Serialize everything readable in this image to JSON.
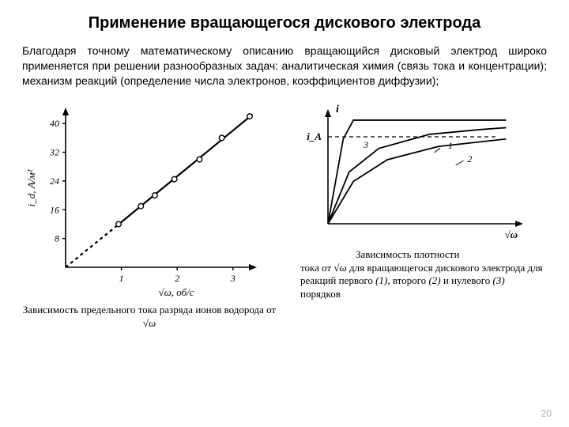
{
  "title": "Применение вращающегося дискового электрода",
  "paragraph": "Благодаря точному математическому описанию вращающийся дисковый электрод широко применяется при решении разнообразных задач: аналитическая химия (связь тока и концентрации); механизм реакций (определение числа электронов, коэффициентов диффузии);",
  "page_number": "20",
  "fig1": {
    "type": "line-scatter",
    "x_ticks": [
      "1",
      "2",
      "3"
    ],
    "y_ticks": [
      "8",
      "16",
      "24",
      "32",
      "40"
    ],
    "xlim": [
      0,
      3.4
    ],
    "ylim": [
      0,
      44
    ],
    "x_label_prefix": "√ω, ",
    "x_label_unit": "об/с",
    "y_label": "i_d, А/м²",
    "points": [
      {
        "x": 0.95,
        "y": 12.0
      },
      {
        "x": 1.35,
        "y": 17.0
      },
      {
        "x": 1.6,
        "y": 20.0
      },
      {
        "x": 1.95,
        "y": 24.5
      },
      {
        "x": 2.4,
        "y": 30.0
      },
      {
        "x": 2.8,
        "y": 36.0
      },
      {
        "x": 3.3,
        "y": 42.0
      }
    ],
    "line_width": 2.2,
    "marker_radius": 3.3,
    "stroke_color": "#000000",
    "dash_pattern": "4 4",
    "background_color": "#ffffff",
    "axis_fontsize": 12,
    "caption_prefix": "Зависимость предельного тока разряда ионов водорода от ",
    "caption_sqrt": "√ω"
  },
  "fig2": {
    "type": "line",
    "stroke_color": "#000000",
    "line_width": 1.8,
    "dash_pattern": "5 4",
    "y_axis_label_top": "i",
    "y_axis_label_mid": "i_A",
    "x_axis_label": "√ω",
    "curve_labels": [
      "1",
      "2",
      "3"
    ],
    "curves": {
      "3": [
        [
          0,
          0
        ],
        [
          18,
          90
        ],
        [
          30,
          110
        ],
        [
          210,
          110
        ]
      ],
      "1": [
        [
          0,
          0
        ],
        [
          25,
          55
        ],
        [
          60,
          80
        ],
        [
          120,
          95
        ],
        [
          180,
          100
        ],
        [
          210,
          102
        ]
      ],
      "2": [
        [
          0,
          0
        ],
        [
          30,
          45
        ],
        [
          70,
          68
        ],
        [
          130,
          82
        ],
        [
          190,
          88
        ],
        [
          210,
          90
        ]
      ]
    },
    "caption_line1": "Зависимость плотности",
    "caption_line2a": "тока от ",
    "caption_sqrt": "√ω",
    "caption_line2b": " для вращающегося дискового электрода для реакций первого ",
    "caption_i1": "(1)",
    "caption_mid": ", второго ",
    "caption_i2": "(2)",
    "caption_mid2": " и нулевого ",
    "caption_i3": "(3)",
    "caption_end": " порядков"
  }
}
